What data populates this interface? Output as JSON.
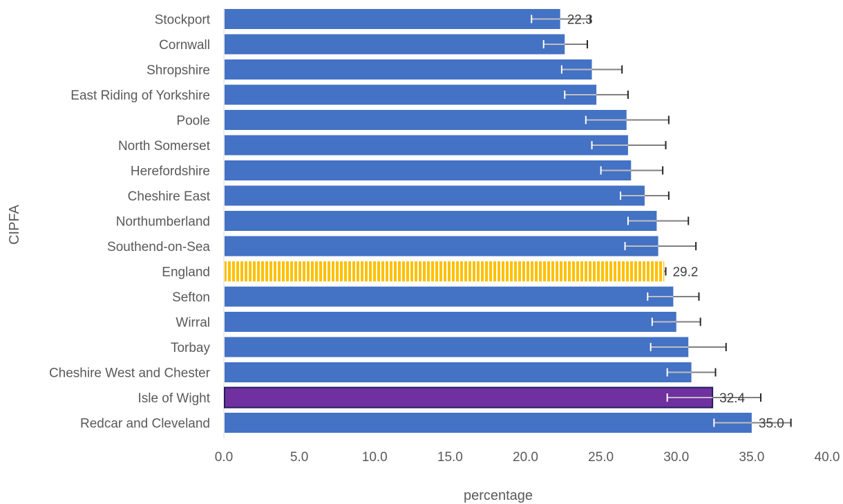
{
  "chart_data": {
    "type": "bar",
    "orientation": "horizontal",
    "title": "",
    "xlabel": "percentage",
    "ylabel": "CIPFA",
    "xlim": [
      0,
      40
    ],
    "xticks": [
      "0.0",
      "5.0",
      "10.0",
      "15.0",
      "20.0",
      "25.0",
      "30.0",
      "35.0",
      "40.0"
    ],
    "grid": false,
    "legend": "none",
    "colors": {
      "default": "#4472C4",
      "england": "#FFC000",
      "highlight": "#7030A0",
      "highlight_border": "#1F1F5C",
      "error_upper": "#262626",
      "error_lower": "#FFFFFF"
    },
    "categories": [
      {
        "name": "Stockport",
        "value": 22.3,
        "ci_low": 20.4,
        "ci_high": 24.3,
        "label": "22.3",
        "style": "default"
      },
      {
        "name": "Cornwall",
        "value": 22.6,
        "ci_low": 21.2,
        "ci_high": 24.1,
        "label": "",
        "style": "default"
      },
      {
        "name": "Shropshire",
        "value": 24.4,
        "ci_low": 22.4,
        "ci_high": 26.4,
        "label": "",
        "style": "default"
      },
      {
        "name": "East Riding of Yorkshire",
        "value": 24.7,
        "ci_low": 22.6,
        "ci_high": 26.8,
        "label": "",
        "style": "default"
      },
      {
        "name": "Poole",
        "value": 26.7,
        "ci_low": 24.0,
        "ci_high": 29.5,
        "label": "",
        "style": "default"
      },
      {
        "name": "North Somerset",
        "value": 26.8,
        "ci_low": 24.4,
        "ci_high": 29.3,
        "label": "",
        "style": "default"
      },
      {
        "name": "Herefordshire",
        "value": 27.0,
        "ci_low": 25.0,
        "ci_high": 29.1,
        "label": "",
        "style": "default"
      },
      {
        "name": "Cheshire East",
        "value": 27.9,
        "ci_low": 26.3,
        "ci_high": 29.5,
        "label": "",
        "style": "default"
      },
      {
        "name": "Northumberland",
        "value": 28.7,
        "ci_low": 26.8,
        "ci_high": 30.8,
        "label": "",
        "style": "default"
      },
      {
        "name": "Southend-on-Sea",
        "value": 28.8,
        "ci_low": 26.6,
        "ci_high": 31.3,
        "label": "",
        "style": "default"
      },
      {
        "name": "England",
        "value": 29.2,
        "ci_low": 29.1,
        "ci_high": 29.3,
        "label": "29.2",
        "style": "england"
      },
      {
        "name": "Sefton",
        "value": 29.8,
        "ci_low": 28.1,
        "ci_high": 31.5,
        "label": "",
        "style": "default"
      },
      {
        "name": "Wirral",
        "value": 30.0,
        "ci_low": 28.4,
        "ci_high": 31.6,
        "label": "",
        "style": "default"
      },
      {
        "name": "Torbay",
        "value": 30.8,
        "ci_low": 28.3,
        "ci_high": 33.3,
        "label": "",
        "style": "default"
      },
      {
        "name": "Cheshire West and Chester",
        "value": 31.0,
        "ci_low": 29.4,
        "ci_high": 32.6,
        "label": "",
        "style": "default"
      },
      {
        "name": "Isle of Wight",
        "value": 32.4,
        "ci_low": 29.4,
        "ci_high": 35.6,
        "label": "32.4",
        "style": "highlight"
      },
      {
        "name": "Redcar and Cleveland",
        "value": 35.0,
        "ci_low": 32.5,
        "ci_high": 37.6,
        "label": "35.0",
        "style": "default"
      }
    ]
  }
}
